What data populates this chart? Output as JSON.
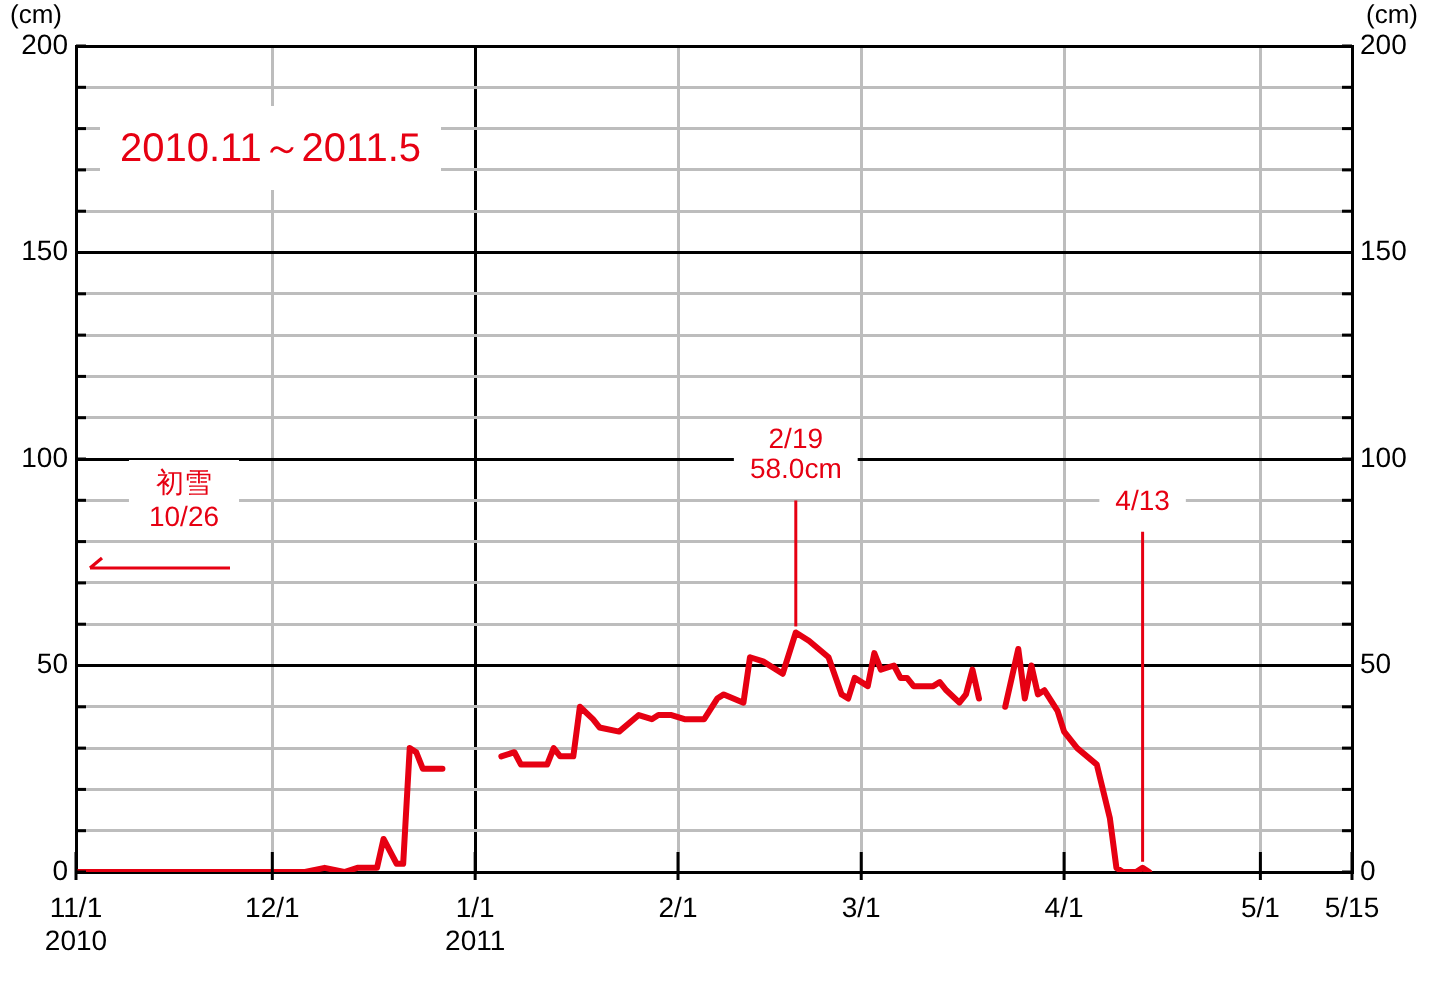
{
  "chart_data": {
    "type": "line",
    "title": "2010.11～2011.5",
    "ylabel": "(cm)",
    "y2label": "(cm)",
    "x": [
      "2010-11-01",
      "2010-12-06",
      "2010-12-09",
      "2010-12-12",
      "2010-12-14",
      "2010-12-17",
      "2010-12-18",
      "2010-12-20",
      "2010-12-21",
      "2010-12-22",
      "2010-12-23",
      "2010-12-24",
      "2010-12-27",
      "2011-01-01",
      "2011-01-05",
      "2011-01-07",
      "2011-01-08",
      "2011-01-12",
      "2011-01-13",
      "2011-01-14",
      "2011-01-16",
      "2011-01-17",
      "2011-01-19",
      "2011-01-20",
      "2011-01-23",
      "2011-01-26",
      "2011-01-28",
      "2011-01-29",
      "2011-01-31",
      "2011-02-02",
      "2011-02-05",
      "2011-02-07",
      "2011-02-08",
      "2011-02-11",
      "2011-02-12",
      "2011-02-14",
      "2011-02-17",
      "2011-02-19",
      "2011-02-21",
      "2011-02-24",
      "2011-02-26",
      "2011-02-27",
      "2011-02-28",
      "2011-03-02",
      "2011-03-03",
      "2011-03-04",
      "2011-03-06",
      "2011-03-07",
      "2011-03-08",
      "2011-03-09",
      "2011-03-12",
      "2011-03-13",
      "2011-03-14",
      "2011-03-16",
      "2011-03-17",
      "2011-03-18",
      "2011-03-19",
      "2011-03-21",
      "2011-03-23",
      "2011-03-25",
      "2011-03-26",
      "2011-03-27",
      "2011-03-28",
      "2011-03-29",
      "2011-03-31",
      "2011-04-01",
      "2011-04-03",
      "2011-04-06",
      "2011-04-08",
      "2011-04-09",
      "2011-04-10",
      "2011-04-12",
      "2011-04-13",
      "2011-04-14"
    ],
    "series": [
      {
        "color": "#e60012",
        "values": [
          0,
          0,
          1,
          0,
          1,
          1,
          8,
          2,
          2,
          30,
          29,
          25,
          25,
          null,
          28,
          29,
          26,
          26,
          30,
          28,
          28,
          40,
          37,
          35,
          34,
          38,
          37,
          38,
          38,
          37,
          37,
          42,
          43,
          41,
          52,
          51,
          48,
          58,
          56,
          52,
          43,
          42,
          47,
          45,
          53,
          49,
          50,
          47,
          47,
          45,
          45,
          46,
          44,
          41,
          43,
          49,
          42,
          null,
          40,
          54,
          42,
          50,
          43,
          44,
          39,
          34,
          30,
          26,
          13,
          1,
          0,
          0,
          1,
          0
        ]
      }
    ],
    "xlim": [
      "2010-11-01",
      "2011-05-15"
    ],
    "xticks": [
      {
        "value": "2010-11-01",
        "label": "11/1\n2010"
      },
      {
        "value": "2010-12-01",
        "label": "12/1"
      },
      {
        "value": "2011-01-01",
        "label": "1/1\n2011"
      },
      {
        "value": "2011-02-01",
        "label": "2/1"
      },
      {
        "value": "2011-03-01",
        "label": "3/1"
      },
      {
        "value": "2011-04-01",
        "label": "4/1"
      },
      {
        "value": "2011-05-01",
        "label": "5/1"
      },
      {
        "value": "2011-05-15",
        "label": "5/15"
      }
    ],
    "ylim": [
      0,
      200
    ],
    "yticks": [
      0,
      {
        "value": 10,
        "label": null
      },
      {
        "value": 20,
        "label": null
      },
      {
        "value": 30,
        "label": null
      },
      {
        "value": 40,
        "label": null
      },
      50,
      {
        "value": 60,
        "label": null
      },
      {
        "value": 70,
        "label": null
      },
      {
        "value": 80,
        "label": null
      },
      {
        "value": 90,
        "label": null
      },
      100,
      {
        "value": 110,
        "label": null
      },
      {
        "value": 120,
        "label": null
      },
      {
        "value": 130,
        "label": null
      },
      {
        "value": 140,
        "label": null
      },
      150,
      {
        "value": 160,
        "label": null
      },
      {
        "value": 170,
        "label": null
      },
      {
        "value": 180,
        "label": null
      },
      {
        "value": 190,
        "label": null
      },
      200
    ],
    "y2lim": [
      0,
      200
    ],
    "y2ticks": [
      0,
      {
        "value": 10,
        "label": null
      },
      {
        "value": 20,
        "label": null
      },
      {
        "value": 30,
        "label": null
      },
      {
        "value": 40,
        "label": null
      },
      50,
      {
        "value": 60,
        "label": null
      },
      {
        "value": 70,
        "label": null
      },
      {
        "value": 80,
        "label": null
      },
      {
        "value": 90,
        "label": null
      },
      100,
      {
        "value": 110,
        "label": null
      },
      {
        "value": 120,
        "label": null
      },
      {
        "value": 130,
        "label": null
      },
      {
        "value": 140,
        "label": null
      },
      150,
      {
        "value": 160,
        "label": null
      },
      {
        "value": 170,
        "label": null
      },
      {
        "value": 180,
        "label": null
      },
      {
        "value": 190,
        "label": null
      },
      200
    ],
    "annotations": [
      "初雪\n10/26",
      {
        "text": "2/19\n58.0cm",
        "x": "2011-02-19",
        "y": 58
      },
      {
        "text": "4/13",
        "x": "2011-04-13",
        "y": 1
      }
    ],
    "grid": true,
    "legend": false,
    "marker": "none",
    "line_style": "solid"
  }
}
